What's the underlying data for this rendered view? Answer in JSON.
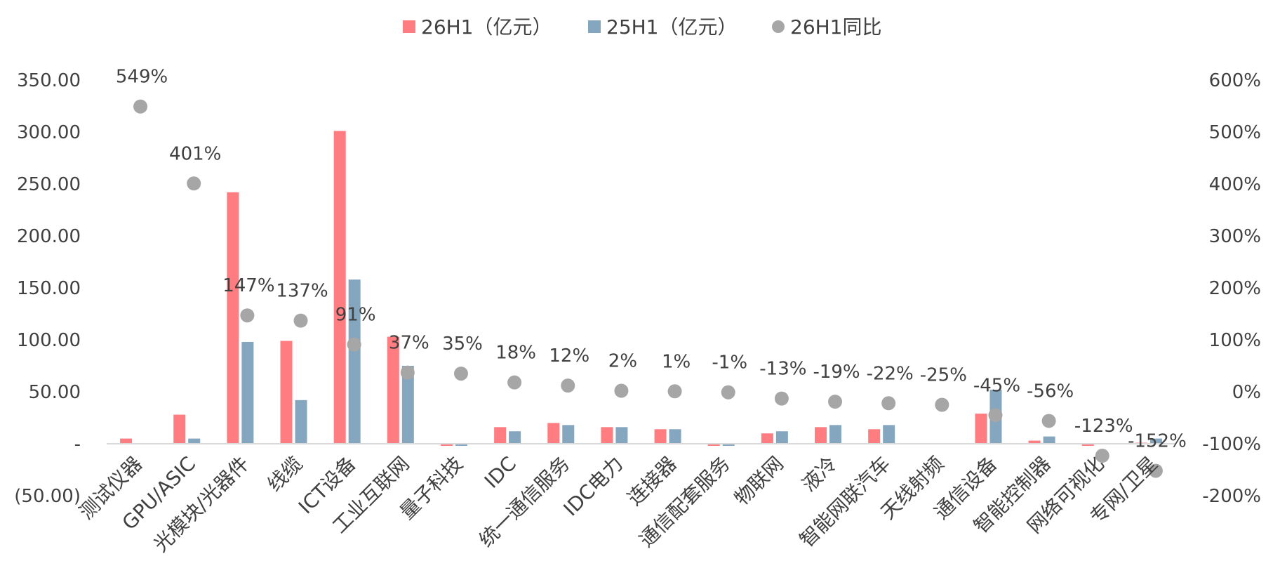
{
  "chart_data": {
    "type": "bar",
    "categories": [
      "测试仪器",
      "GPU/ASIC",
      "光模块/光器件",
      "线缆",
      "ICT设备",
      "工业互联网",
      "量子科技",
      "IDC",
      "统一通信服务",
      "IDC电力",
      "连接器",
      "通信配套服务",
      "物联网",
      "液冷",
      "智能网联汽车",
      "天线射频",
      "通信设备",
      "智能控制器",
      "网络可视化",
      "专网/卫星"
    ],
    "series": [
      {
        "name": "26H1（亿元）",
        "color": "#ff7c80",
        "axis": "left",
        "kind": "bar",
        "values": [
          5,
          28,
          242,
          99,
          301,
          103,
          -2,
          16,
          20,
          16,
          14,
          -2,
          10,
          16,
          14,
          0,
          29,
          3,
          -2,
          1
        ]
      },
      {
        "name": "25H1（亿元）",
        "color": "#84a6bf",
        "axis": "left",
        "kind": "bar",
        "values": [
          0,
          5,
          98,
          42,
          158,
          75,
          -2,
          12,
          18,
          16,
          14,
          -2,
          12,
          18,
          18,
          0,
          52,
          7,
          0,
          5
        ]
      },
      {
        "name": "26H1同比",
        "color": "#a6a6a6",
        "axis": "right",
        "kind": "scatter",
        "values": [
          549,
          401,
          147,
          137,
          91,
          37,
          35,
          18,
          12,
          2,
          1,
          -1,
          -13,
          -19,
          -22,
          -25,
          -45,
          -56,
          -123,
          -152
        ],
        "labels": [
          "549%",
          "401%",
          "147%",
          "137%",
          "91%",
          "37%",
          "35%",
          "18%",
          "12%",
          "2%",
          "1%",
          "-1%",
          "-13%",
          "-19%",
          "-22%",
          "-25%",
          "-45%",
          "-56%",
          "-123%",
          "-152%"
        ]
      }
    ],
    "y_left": {
      "min": -50,
      "max": 350,
      "ticks": [
        -50,
        0,
        50,
        100,
        150,
        200,
        250,
        300,
        350
      ],
      "tick_labels": [
        "(50.00)",
        "-",
        "50.00",
        "100.00",
        "150.00",
        "200.00",
        "250.00",
        "300.00",
        "350.00"
      ]
    },
    "y_right": {
      "min": -200,
      "max": 600,
      "ticks": [
        -200,
        -100,
        0,
        100,
        200,
        300,
        400,
        500,
        600
      ],
      "tick_labels": [
        "-200%",
        "-100%",
        "0%",
        "100%",
        "200%",
        "300%",
        "400%",
        "500%",
        "600%"
      ]
    },
    "legend_position": "top-center",
    "grid": false
  }
}
